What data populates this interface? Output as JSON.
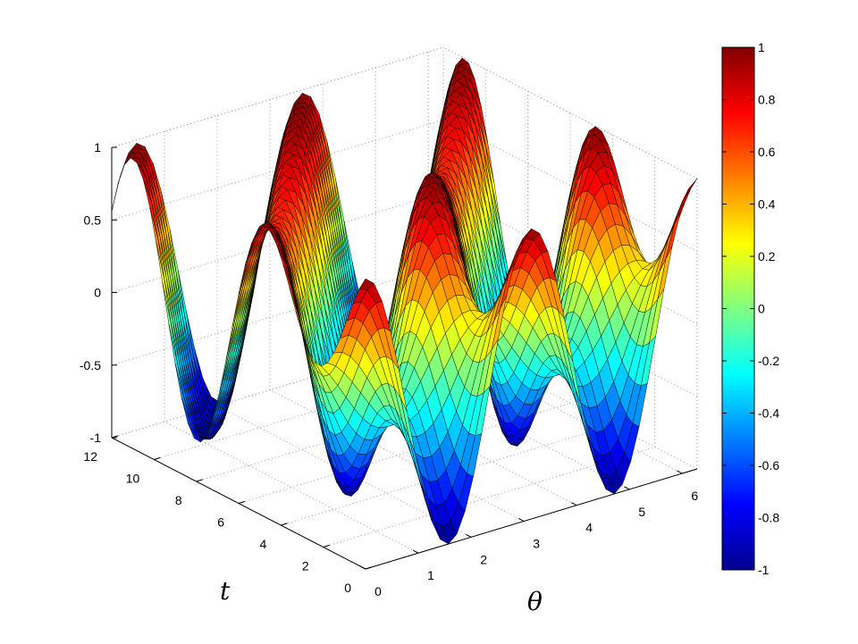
{
  "chart_data": {
    "type": "surface",
    "title": "",
    "xlabel": "θ",
    "ylabel": "t",
    "zlabel": "",
    "x_ticks": [
      "0",
      "1",
      "2",
      "3",
      "4",
      "5",
      "6"
    ],
    "y_ticks": [
      "0",
      "2",
      "4",
      "6",
      "8",
      "10",
      "12"
    ],
    "z_ticks": [
      "-1",
      "-0.5",
      "0",
      "0.5",
      "1"
    ],
    "xlim": [
      0,
      6.2832
    ],
    "ylim": [
      0,
      12
    ],
    "zlim": [
      -1,
      1
    ],
    "grid": true,
    "colormap": "jet",
    "colorbar": {
      "ticks": [
        "-1",
        "-0.8",
        "-0.6",
        "-0.4",
        "-0.2",
        "0",
        "0.2",
        "0.4",
        "0.6",
        "0.8",
        "1"
      ],
      "range": [
        -1,
        1
      ]
    },
    "surface": {
      "function": "z(θ,t) = cos(2θ)·exp(-t/4) + sin(2θ - t)·(1 - exp(-t/4))",
      "theta_samples": 41,
      "t_samples": 41
    }
  }
}
